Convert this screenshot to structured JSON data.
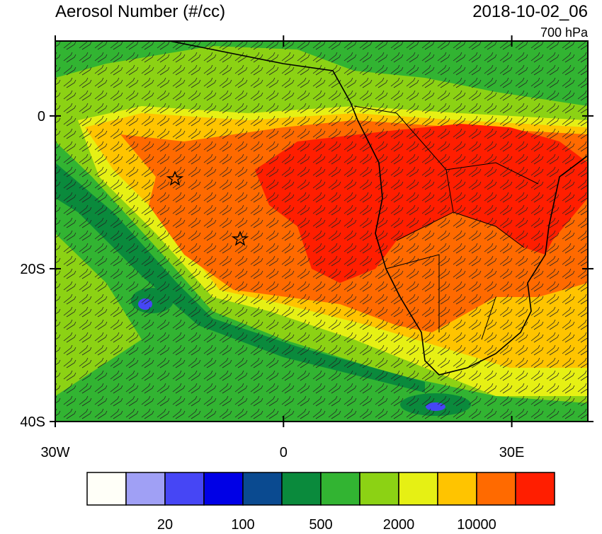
{
  "header": {
    "title": "Aerosol Number (#/cc)",
    "time": "2018-10-02_06",
    "level": "700 hPa"
  },
  "map": {
    "lon_range": [
      -30,
      40
    ],
    "lat_range": [
      -40,
      9.8
    ],
    "lat_ticks": [
      {
        "value": 0,
        "label": "0"
      },
      {
        "value": -20,
        "label": "20S"
      },
      {
        "value": -40,
        "label": "40S"
      }
    ],
    "lon_ticks": [
      {
        "value": -30,
        "label": "30W"
      },
      {
        "value": 0,
        "label": "0"
      },
      {
        "value": 30,
        "label": "30E"
      }
    ]
  },
  "colorbar": {
    "colors": [
      "#fffff8",
      "#a0a0f5",
      "#4646f5",
      "#0000e6",
      "#0a4a90",
      "#0a8a3c",
      "#32b432",
      "#8cd214",
      "#e6f014",
      "#ffc400",
      "#ff6a00",
      "#ff1e00"
    ],
    "labels": [
      20,
      100,
      500,
      2000,
      10000
    ]
  }
}
